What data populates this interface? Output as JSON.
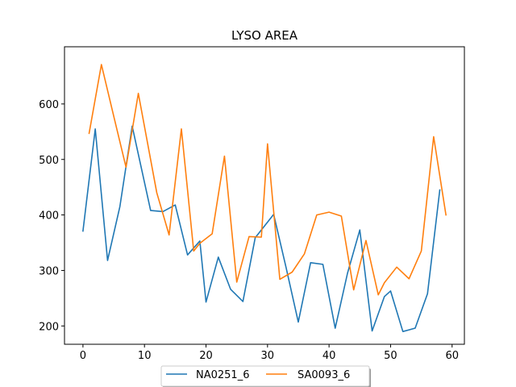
{
  "chart_data": {
    "type": "line",
    "title": "LYSO AREA",
    "xlabel": "",
    "ylabel": "",
    "xlim": [
      -3,
      62
    ],
    "ylim": [
      167,
      703
    ],
    "xticks": [
      0,
      10,
      20,
      30,
      40,
      50,
      60
    ],
    "yticks": [
      200,
      300,
      400,
      500,
      600
    ],
    "grid": false,
    "legend_position": "bottom-center",
    "series": [
      {
        "name": "NA0251_6",
        "color": "#1f77b4",
        "x": [
          0,
          2,
          4,
          6,
          8,
          11,
          13,
          15,
          17,
          19,
          20,
          22,
          24,
          26,
          28,
          31,
          33,
          35,
          37,
          39,
          41,
          43,
          45,
          47,
          49,
          50,
          52,
          54,
          56,
          58
        ],
        "y": [
          371,
          555,
          318,
          415,
          560,
          408,
          406,
          418,
          328,
          353,
          243,
          324,
          266,
          244,
          359,
          401,
          306,
          207,
          314,
          311,
          196,
          295,
          373,
          191,
          253,
          263,
          190,
          196,
          258,
          445
        ]
      },
      {
        "name": "SA0093_6",
        "color": "#ff7f0e",
        "x": [
          1,
          3,
          5,
          7,
          9,
          12,
          14,
          16,
          18,
          19,
          21,
          23,
          25,
          27,
          29,
          30,
          32,
          34,
          36,
          38,
          40,
          42,
          44,
          46,
          48,
          49,
          51,
          53,
          55,
          57,
          59
        ],
        "y": [
          547,
          671,
          578,
          486,
          619,
          440,
          364,
          555,
          335,
          349,
          366,
          506,
          279,
          361,
          360,
          528,
          284,
          297,
          330,
          400,
          405,
          398,
          265,
          354,
          256,
          278,
          306,
          285,
          335,
          541,
          400
        ]
      }
    ]
  }
}
